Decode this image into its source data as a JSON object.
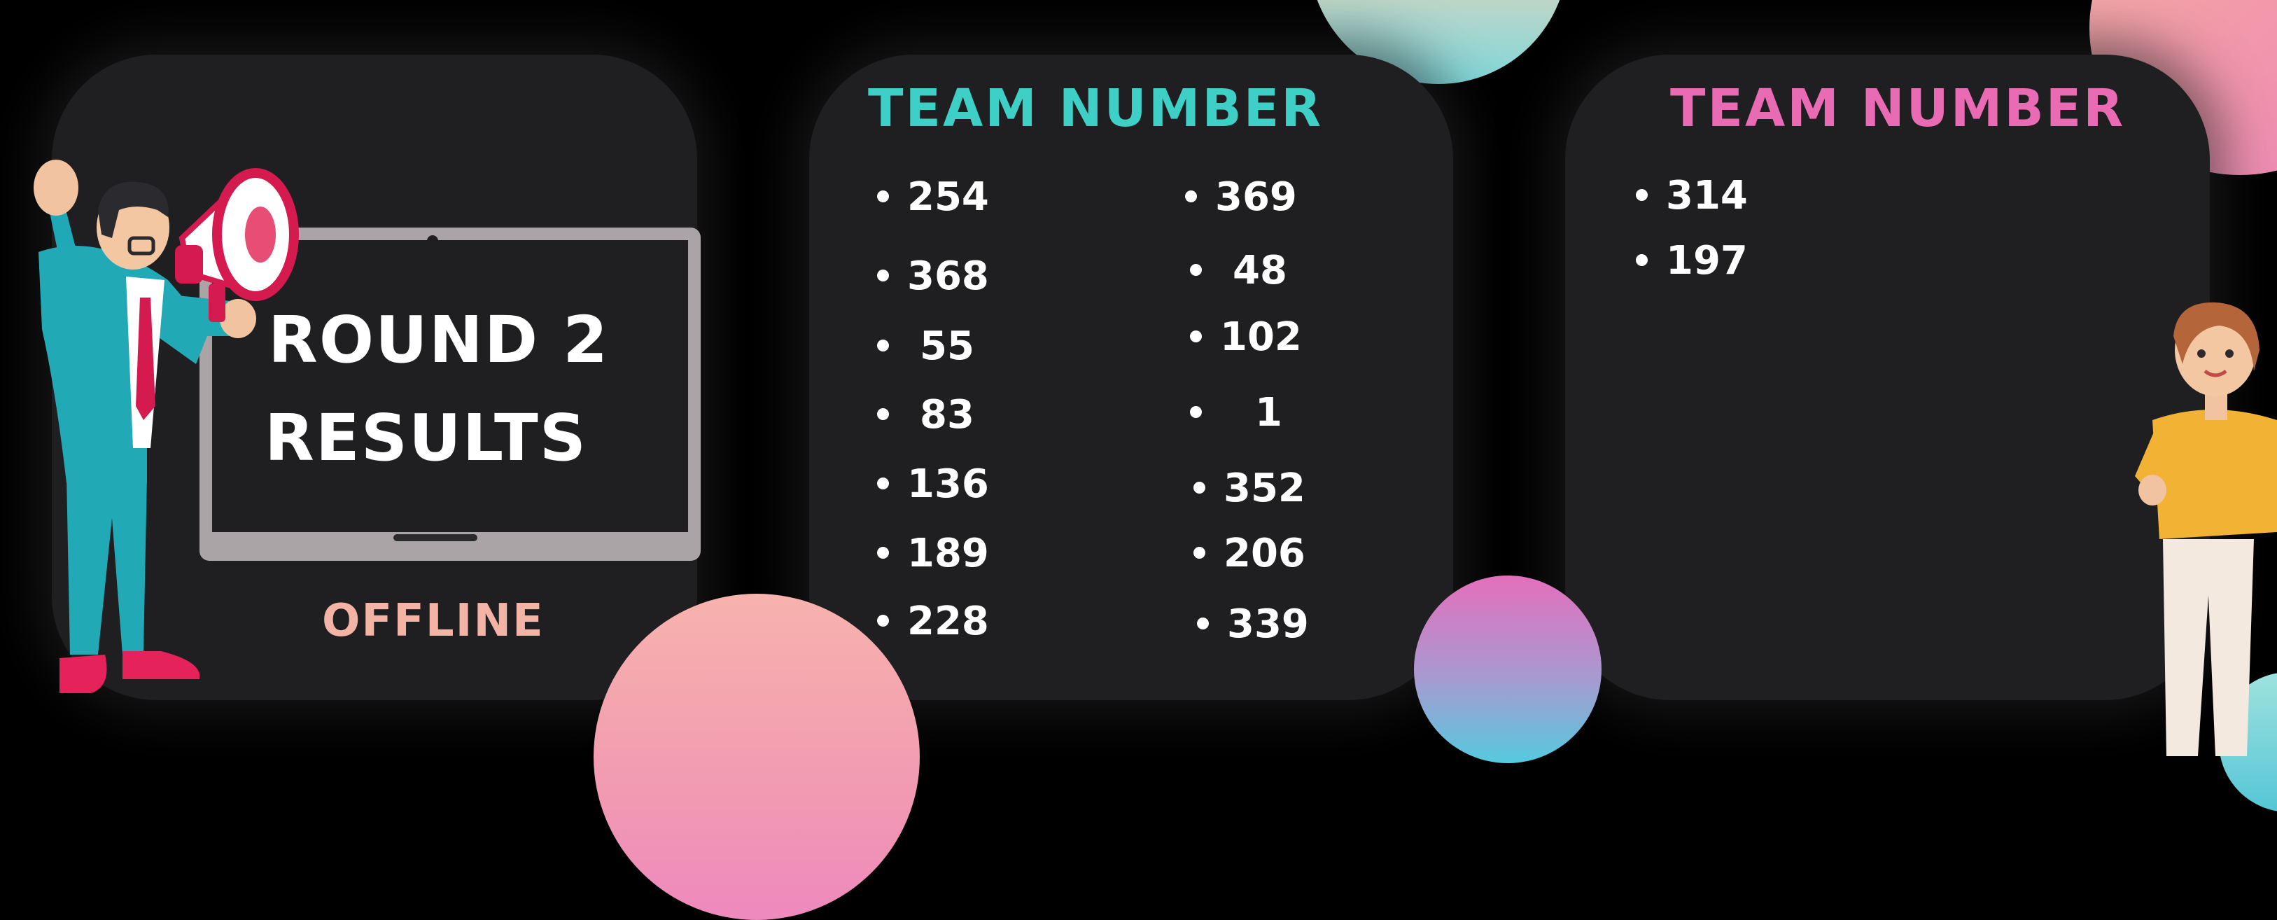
{
  "title": {
    "line1": "ROUND 2",
    "line2": "RESULTS"
  },
  "mode_label": "OFFLINE",
  "columns": [
    {
      "heading": "TEAM NUMBER",
      "left_list": [
        "254",
        "368",
        "55",
        "83",
        "136",
        "189",
        "228"
      ],
      "right_list": [
        "369",
        "48",
        "102",
        "1",
        "352",
        "206",
        "339"
      ]
    },
    {
      "heading": "TEAM NUMBER",
      "list": [
        "314",
        "197"
      ]
    }
  ],
  "colors": {
    "background": "#000000",
    "panel": "#1f1f21",
    "heading_teal": "#3ecfc6",
    "heading_pink": "#e96bb4",
    "offline": "#f3b3a5",
    "text": "#ffffff"
  },
  "icons": [
    "megaphone-icon",
    "monitor-icon"
  ]
}
